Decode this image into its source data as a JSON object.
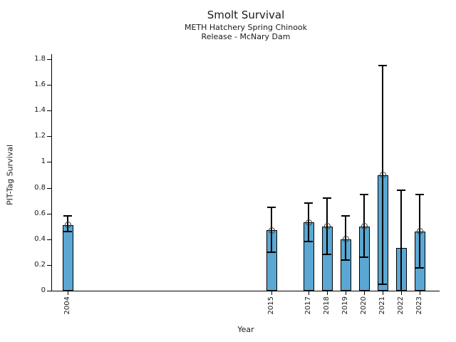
{
  "chart_data": {
    "type": "bar",
    "title": "Smolt Survival",
    "subtitle1": "METH Hatchery Spring Chinook",
    "subtitle2": "Release - McNary Dam",
    "xlabel": "Year",
    "ylabel": "PIT-Tag Survival",
    "ylim": [
      0,
      1.8
    ],
    "yticks": {
      "values": [
        0,
        0.2,
        0.4,
        0.6,
        0.8,
        1.0,
        1.2,
        1.4,
        1.6,
        1.8
      ],
      "labels": [
        "0",
        "0.2",
        "0.4",
        "0.6",
        "0.8",
        "1",
        "1.2",
        "1.4",
        "1.6",
        "1.8"
      ]
    },
    "x_type": "linear",
    "xlim": [
      2003.1,
      2024.1
    ],
    "grid": false,
    "legend": null,
    "points": [
      {
        "year": 2004,
        "label": "2004",
        "value": 0.51,
        "ci_low": 0.46,
        "ci_high": 0.58,
        "marker": true
      },
      {
        "year": 2015,
        "label": "2015",
        "value": 0.47,
        "ci_low": 0.3,
        "ci_high": 0.65,
        "marker": true
      },
      {
        "year": 2017,
        "label": "2017",
        "value": 0.53,
        "ci_low": 0.38,
        "ci_high": 0.68,
        "marker": true
      },
      {
        "year": 2018,
        "label": "2018",
        "value": 0.5,
        "ci_low": 0.28,
        "ci_high": 0.72,
        "marker": true
      },
      {
        "year": 2019,
        "label": "2019",
        "value": 0.4,
        "ci_low": 0.24,
        "ci_high": 0.58,
        "marker": true
      },
      {
        "year": 2020,
        "label": "2020",
        "value": 0.5,
        "ci_low": 0.26,
        "ci_high": 0.75,
        "marker": true
      },
      {
        "year": 2021,
        "label": "2021",
        "value": 0.9,
        "ci_low": 0.05,
        "ci_high": 1.75,
        "marker": true
      },
      {
        "year": 2022,
        "label": "2022",
        "value": 0.33,
        "ci_low": 0.0,
        "ci_high": 0.78,
        "marker": false
      },
      {
        "year": 2023,
        "label": "2023",
        "value": 0.46,
        "ci_low": 0.18,
        "ci_high": 0.75,
        "marker": true
      }
    ],
    "colors": {
      "bar_fill": "#5AA7D3",
      "bar_edge": "#000000",
      "error_bar": "#000000",
      "marker_edge": "#3d3d3d",
      "background": "#ffffff",
      "text": "#1a1a1a"
    }
  }
}
